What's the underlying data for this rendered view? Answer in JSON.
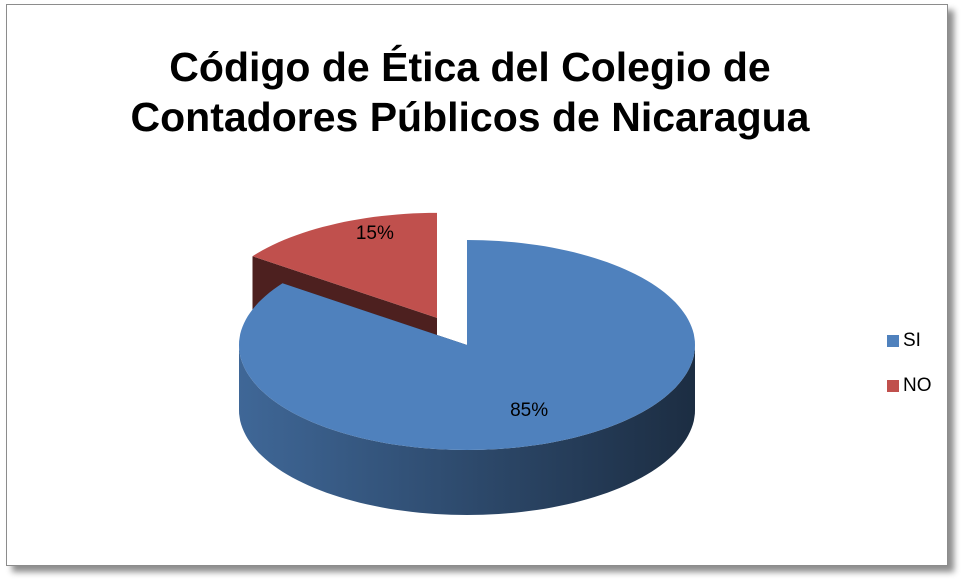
{
  "chart_data": {
    "type": "pie",
    "title": "Código de Ética del Colegio de Contadores Públicos de Nicaragua",
    "categories": [
      "SI",
      "NO"
    ],
    "values": [
      85,
      15
    ],
    "value_labels": [
      "85%",
      "15%"
    ],
    "colors": [
      "#4f81bd",
      "#c0504d"
    ],
    "legend": "right"
  }
}
